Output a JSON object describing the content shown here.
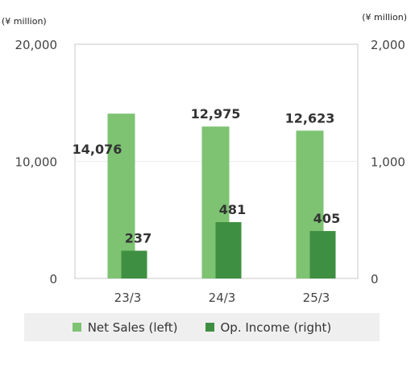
{
  "chart_data": {
    "type": "bar",
    "categories": [
      "23/3",
      "24/3",
      "25/3"
    ],
    "series": [
      {
        "name": "Net Sales (left)",
        "axis": "left",
        "values": [
          14076,
          12975,
          12623
        ],
        "labels": [
          "14,076",
          "12,975",
          "12,623"
        ],
        "color": "#7dc372"
      },
      {
        "name": "Op. Income (right)",
        "axis": "right",
        "values": [
          237,
          481,
          405
        ],
        "labels": [
          "237",
          "481",
          "405"
        ],
        "color": "#3f8f42"
      }
    ],
    "y_left": {
      "unit": "(¥ million)",
      "ylim": [
        0,
        20000
      ],
      "ticks": [
        0,
        10000,
        20000
      ],
      "tick_labels": [
        "0",
        "10,000",
        "20,000"
      ]
    },
    "y_right": {
      "unit": "(¥ million)",
      "ylim": [
        0,
        2000
      ],
      "ticks": [
        0,
        1000,
        2000
      ],
      "tick_labels": [
        "0",
        "1,000",
        "2,000"
      ]
    },
    "grid": true,
    "legend_position": "bottom"
  }
}
